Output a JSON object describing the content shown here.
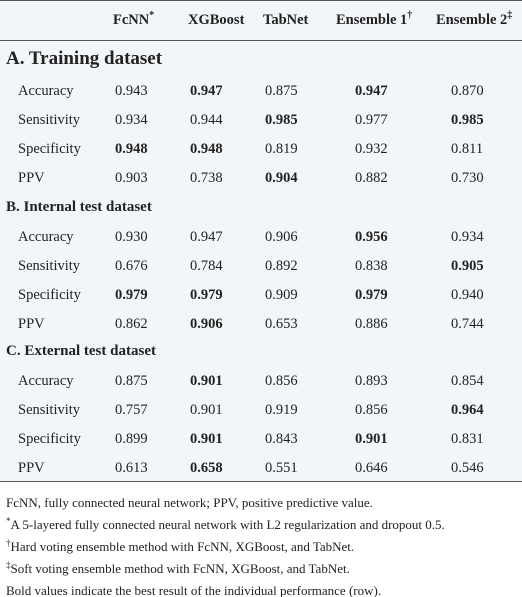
{
  "table": {
    "columns": [
      {
        "text": "FcNN",
        "mark": "*"
      },
      {
        "text": "XGBoost"
      },
      {
        "text": "TabNet"
      },
      {
        "text": "Ensemble 1",
        "mark": "†"
      },
      {
        "text": "Ensemble 2",
        "mark": "‡"
      }
    ],
    "sections": [
      {
        "title": "A. Training dataset",
        "rows": [
          {
            "label": "Accuracy",
            "values": [
              "0.943",
              "0.947",
              "0.875",
              "0.947",
              "0.870"
            ],
            "bold": [
              false,
              true,
              false,
              true,
              false
            ]
          },
          {
            "label": "Sensitivity",
            "values": [
              "0.934",
              "0.944",
              "0.985",
              "0.977",
              "0.985"
            ],
            "bold": [
              false,
              false,
              true,
              false,
              true
            ]
          },
          {
            "label": "Specificity",
            "values": [
              "0.948",
              "0.948",
              "0.819",
              "0.932",
              "0.811"
            ],
            "bold": [
              true,
              true,
              false,
              false,
              false
            ]
          },
          {
            "label": "PPV",
            "values": [
              "0.903",
              "0.738",
              "0.904",
              "0.882",
              "0.730"
            ],
            "bold": [
              false,
              false,
              true,
              false,
              false
            ]
          }
        ]
      },
      {
        "title": "B. Internal test dataset",
        "rows": [
          {
            "label": "Accuracy",
            "values": [
              "0.930",
              "0.947",
              "0.906",
              "0.956",
              "0.934"
            ],
            "bold": [
              false,
              false,
              false,
              true,
              false
            ]
          },
          {
            "label": "Sensitivity",
            "values": [
              "0.676",
              "0.784",
              "0.892",
              "0.838",
              "0.905"
            ],
            "bold": [
              false,
              false,
              false,
              false,
              true
            ]
          },
          {
            "label": "Specificity",
            "values": [
              "0.979",
              "0.979",
              "0.909",
              "0.979",
              "0.940"
            ],
            "bold": [
              true,
              true,
              false,
              true,
              false
            ]
          },
          {
            "label": "PPV",
            "values": [
              "0.862",
              "0.906",
              "0.653",
              "0.886",
              "0.744"
            ],
            "bold": [
              false,
              true,
              false,
              false,
              false
            ]
          }
        ]
      },
      {
        "title": "C. External test dataset",
        "rows": [
          {
            "label": "Accuracy",
            "values": [
              "0.875",
              "0.901",
              "0.856",
              "0.893",
              "0.854"
            ],
            "bold": [
              false,
              true,
              false,
              false,
              false
            ]
          },
          {
            "label": "Sensitivity",
            "values": [
              "0.757",
              "0.901",
              "0.919",
              "0.856",
              "0.964"
            ],
            "bold": [
              false,
              false,
              false,
              false,
              true
            ]
          },
          {
            "label": "Specificity",
            "values": [
              "0.899",
              "0.901",
              "0.843",
              "0.901",
              "0.831"
            ],
            "bold": [
              false,
              true,
              false,
              true,
              false
            ]
          },
          {
            "label": "PPV",
            "values": [
              "0.613",
              "0.658",
              "0.551",
              "0.646",
              "0.546"
            ],
            "bold": [
              false,
              true,
              false,
              false,
              false
            ]
          }
        ]
      }
    ]
  },
  "footnotes": [
    {
      "text": "FcNN, fully connected neural network; PPV, positive predictive value."
    },
    {
      "mark": "*",
      "text": "A 5-layered fully connected neural network with L2 regularization and dropout 0.5."
    },
    {
      "mark": "†",
      "text": "Hard voting ensemble method with FcNN, XGBoost, and TabNet."
    },
    {
      "mark": "‡",
      "text": "Soft voting ensemble method with FcNN, XGBoost, and TabNet."
    },
    {
      "text": "Bold values indicate the best result of the individual performance (row)."
    }
  ]
}
